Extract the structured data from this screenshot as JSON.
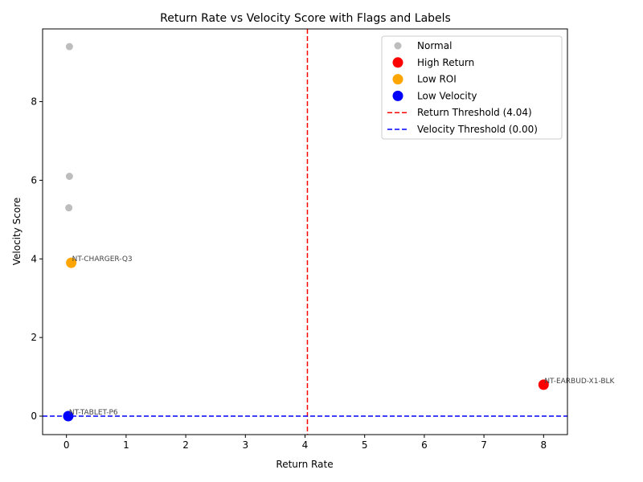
{
  "chart_data": {
    "type": "scatter",
    "title": "Return Rate vs Velocity Score with Flags and Labels",
    "xlabel": "Return Rate",
    "ylabel": "Velocity Score",
    "xlim": [
      -0.4,
      8.4
    ],
    "ylim": [
      -0.47,
      9.85
    ],
    "xticks": [
      0,
      1,
      2,
      3,
      4,
      5,
      6,
      7,
      8
    ],
    "yticks": [
      0,
      2,
      4,
      6,
      8
    ],
    "grid": false,
    "legend_position": "top-right",
    "series": [
      {
        "name": "Normal",
        "color": "#999999",
        "points": [
          {
            "x": 0.05,
            "y": 9.4,
            "label": ""
          },
          {
            "x": 0.05,
            "y": 6.1,
            "label": ""
          },
          {
            "x": 0.04,
            "y": 5.3,
            "label": ""
          }
        ]
      },
      {
        "name": "High Return",
        "color": "#ff0000",
        "points": [
          {
            "x": 8.0,
            "y": 0.8,
            "label": "NT-EARBUD-X1-BLK"
          }
        ]
      },
      {
        "name": "Low ROI",
        "color": "#ffa500",
        "points": [
          {
            "x": 0.08,
            "y": 3.9,
            "label": "NT-CHARGER-Q3"
          }
        ]
      },
      {
        "name": "Low Velocity",
        "color": "#0000ff",
        "points": [
          {
            "x": 0.03,
            "y": 0.0,
            "label": "NT-TABLET-P6"
          }
        ]
      }
    ],
    "thresholds": [
      {
        "name": "Return Threshold (4.04)",
        "axis": "x",
        "value": 4.04,
        "color": "#ff0000"
      },
      {
        "name": "Velocity Threshold (0.00)",
        "axis": "y",
        "value": 0.0,
        "color": "#0000ff"
      }
    ]
  }
}
